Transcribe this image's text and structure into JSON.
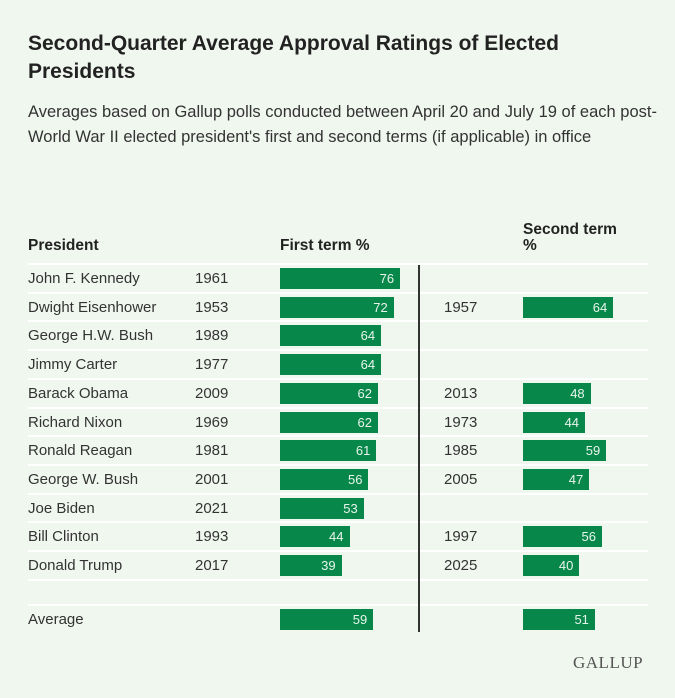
{
  "title": "Second-Quarter Average Approval Ratings of Elected Presidents",
  "subtitle": "Averages based on Gallup polls conducted between April 20 and July 19 of each post-World War II elected president's first and second terms (if applicable) in office",
  "headers": {
    "president": "President",
    "first": "First term %",
    "second": "Second term %"
  },
  "logo": "GALLUP",
  "colors": {
    "bar": "#07874a",
    "background": "#f0f7ef"
  },
  "chart_data": {
    "type": "table",
    "rows": [
      {
        "president": "John F. Kennedy",
        "first_year": "1961",
        "first": 76,
        "second_year": "",
        "second": null
      },
      {
        "president": "Dwight Eisenhower",
        "first_year": "1953",
        "first": 72,
        "second_year": "1957",
        "second": 64
      },
      {
        "president": "George H.W. Bush",
        "first_year": "1989",
        "first": 64,
        "second_year": "",
        "second": null
      },
      {
        "president": "Jimmy Carter",
        "first_year": "1977",
        "first": 64,
        "second_year": "",
        "second": null
      },
      {
        "president": "Barack Obama",
        "first_year": "2009",
        "first": 62,
        "second_year": "2013",
        "second": 48
      },
      {
        "president": "Richard Nixon",
        "first_year": "1969",
        "first": 62,
        "second_year": "1973",
        "second": 44
      },
      {
        "president": "Ronald Reagan",
        "first_year": "1981",
        "first": 61,
        "second_year": "1985",
        "second": 59
      },
      {
        "president": "George W. Bush",
        "first_year": "2001",
        "first": 56,
        "second_year": "2005",
        "second": 47
      },
      {
        "president": "Joe Biden",
        "first_year": "2021",
        "first": 53,
        "second_year": "",
        "second": null
      },
      {
        "president": "Bill Clinton",
        "first_year": "1993",
        "first": 44,
        "second_year": "1997",
        "second": 56
      },
      {
        "president": "Donald Trump",
        "first_year": "2017",
        "first": 39,
        "second_year": "2025",
        "second": 40
      }
    ],
    "average": {
      "label": "Average",
      "first": 59,
      "second": 51
    }
  }
}
